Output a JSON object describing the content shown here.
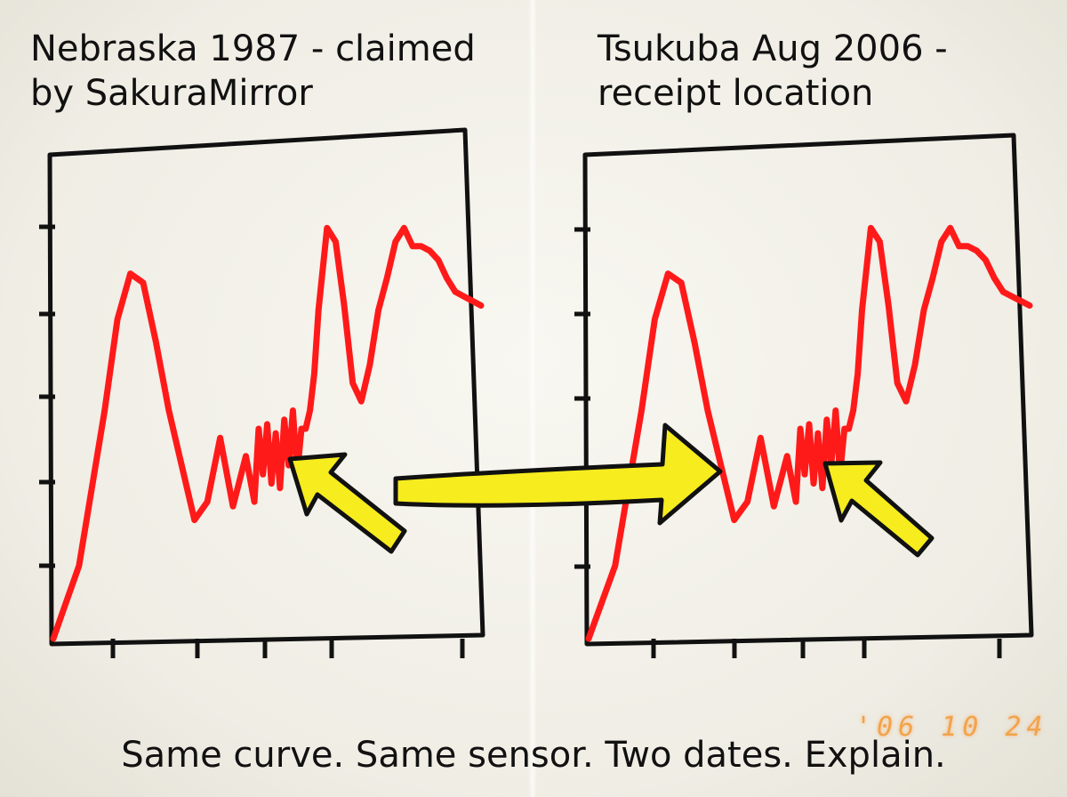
{
  "titles": {
    "left": "Nebraska 1987 - claimed\nby SakuraMirror",
    "right": "Tsukuba Aug 2006 -\nreceipt location"
  },
  "caption": "Same curve. Same sensor. Two dates. Explain.",
  "date_stamp": "'06 10 24",
  "colors": {
    "curve": "#ff1a1a",
    "frame": "#111111",
    "arrow_fill": "#f7ec1e",
    "arrow_stroke": "#111111",
    "date_stamp": "#f2a34a"
  },
  "chart_data": [
    {
      "type": "line",
      "title": "Nebraska 1987 - claimed by SakuraMirror",
      "xlabel": "",
      "ylabel": "",
      "xlim": [
        0,
        100
      ],
      "ylim": [
        0,
        100
      ],
      "grid": false,
      "series": [
        {
          "x": [
            0,
            3,
            6,
            9,
            12,
            15,
            18,
            21,
            24,
            27,
            30,
            33,
            36,
            39,
            42,
            45,
            47,
            48,
            49,
            50,
            51,
            52,
            53,
            54,
            55,
            56,
            57,
            58,
            59,
            60,
            61,
            62,
            64,
            66,
            68,
            70,
            72,
            74,
            76,
            78,
            80,
            82,
            84,
            86,
            88,
            90,
            92,
            94,
            96,
            98,
            100
          ],
          "y": [
            0,
            8,
            16,
            33,
            50,
            70,
            80,
            78,
            65,
            50,
            38,
            26,
            30,
            44,
            29,
            40,
            30,
            46,
            36,
            47,
            34,
            45,
            33,
            48,
            38,
            50,
            36,
            46,
            46,
            50,
            58,
            72,
            90,
            87,
            73,
            56,
            52,
            60,
            72,
            79,
            87,
            90,
            86,
            86,
            85,
            83,
            79,
            76,
            75,
            74,
            73
          ]
        }
      ]
    },
    {
      "type": "line",
      "title": "Tsukuba Aug 2006 - receipt location",
      "xlabel": "",
      "ylabel": "",
      "xlim": [
        0,
        100
      ],
      "ylim": [
        0,
        100
      ],
      "grid": false,
      "series": [
        {
          "x": [
            0,
            3,
            6,
            9,
            12,
            15,
            18,
            21,
            24,
            27,
            30,
            33,
            36,
            39,
            42,
            45,
            47,
            48,
            49,
            50,
            51,
            52,
            53,
            54,
            55,
            56,
            57,
            58,
            59,
            60,
            61,
            62,
            64,
            66,
            68,
            70,
            72,
            74,
            76,
            78,
            80,
            82,
            84,
            86,
            88,
            90,
            92,
            94,
            96,
            98,
            100
          ],
          "y": [
            0,
            8,
            16,
            33,
            50,
            70,
            80,
            78,
            65,
            50,
            38,
            26,
            30,
            44,
            29,
            40,
            30,
            46,
            36,
            47,
            34,
            45,
            33,
            48,
            38,
            50,
            36,
            46,
            46,
            50,
            58,
            72,
            90,
            87,
            73,
            56,
            52,
            60,
            72,
            79,
            87,
            90,
            86,
            86,
            85,
            83,
            79,
            76,
            75,
            74,
            73
          ]
        }
      ]
    }
  ]
}
